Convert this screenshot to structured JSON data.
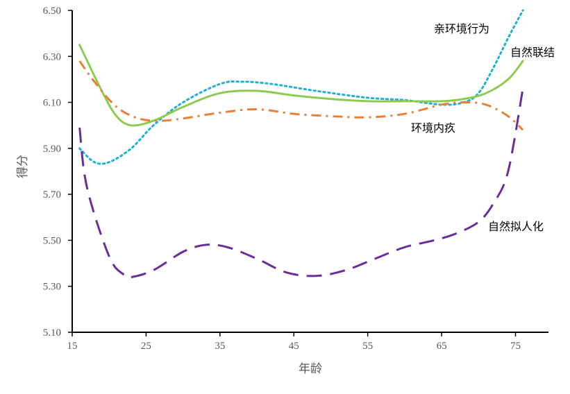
{
  "chart_data": {
    "type": "line",
    "title": "",
    "xlabel": "年龄",
    "ylabel": "得分",
    "xlim": [
      15,
      80
    ],
    "ylim": [
      5.1,
      6.5
    ],
    "xticks": [
      15,
      25,
      35,
      45,
      55,
      65,
      75
    ],
    "xtick_labels": [
      "15",
      "25",
      "35",
      "45",
      "55",
      "65",
      "75"
    ],
    "yticks": [
      5.1,
      5.3,
      5.5,
      5.7,
      5.9,
      6.1,
      6.3,
      6.5
    ],
    "ytick_labels": [
      "5.10",
      "5.30",
      "5.50",
      "5.70",
      "5.90",
      "6.10",
      "6.30",
      "6.50"
    ],
    "grid": false,
    "series": [
      {
        "name": "亲环境行为",
        "color": "#1FB0D8",
        "style": "dotted",
        "x": [
          16,
          18,
          20,
          23,
          26,
          30,
          35,
          38,
          42,
          48,
          55,
          60,
          65,
          68,
          70,
          72,
          74,
          76
        ],
        "y": [
          5.9,
          5.84,
          5.84,
          5.9,
          6.0,
          6.1,
          6.18,
          6.19,
          6.18,
          6.15,
          6.12,
          6.11,
          6.09,
          6.1,
          6.14,
          6.25,
          6.38,
          6.5
        ]
      },
      {
        "name": "自然联结",
        "color": "#8CCB4F",
        "style": "solid",
        "x": [
          16,
          19,
          21,
          23,
          26,
          30,
          35,
          40,
          45,
          50,
          55,
          60,
          65,
          68,
          71,
          74,
          76
        ],
        "y": [
          6.35,
          6.15,
          6.04,
          6.0,
          6.02,
          6.08,
          6.14,
          6.15,
          6.13,
          6.115,
          6.105,
          6.105,
          6.105,
          6.115,
          6.14,
          6.2,
          6.28
        ]
      },
      {
        "name": "环境内疚",
        "color": "#E8803A",
        "style": "dashdot",
        "x": [
          16,
          18,
          21,
          24,
          27,
          30,
          35,
          40,
          45,
          50,
          55,
          60,
          65,
          68,
          71,
          74,
          76
        ],
        "y": [
          6.28,
          6.19,
          6.08,
          6.03,
          6.02,
          6.03,
          6.055,
          6.07,
          6.05,
          6.04,
          6.035,
          6.05,
          6.09,
          6.1,
          6.09,
          6.04,
          5.98
        ]
      },
      {
        "name": "自然拟人化",
        "color": "#6A2C9A",
        "style": "dashed",
        "x": [
          16,
          17,
          20,
          22,
          23,
          26,
          30,
          33,
          36,
          40,
          44,
          48,
          52,
          56,
          60,
          64,
          67,
          70,
          72,
          74,
          76
        ],
        "y": [
          5.99,
          5.73,
          5.43,
          5.35,
          5.34,
          5.37,
          5.45,
          5.48,
          5.47,
          5.42,
          5.36,
          5.345,
          5.37,
          5.42,
          5.47,
          5.5,
          5.53,
          5.58,
          5.66,
          5.8,
          6.16
        ]
      }
    ]
  }
}
